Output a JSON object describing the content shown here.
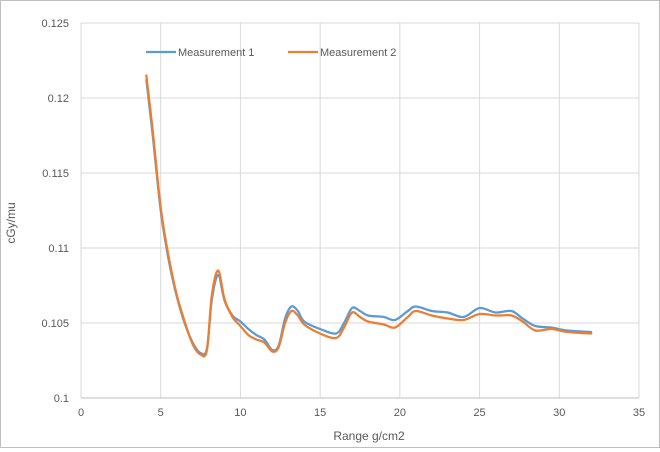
{
  "chart_data": {
    "type": "line",
    "title": "",
    "xlabel": "Range g/cm2",
    "ylabel": "cGy/mu",
    "xlim": [
      0,
      35
    ],
    "ylim": [
      0.1,
      0.125
    ],
    "x_ticks": [
      "0",
      "5",
      "10",
      "15",
      "20",
      "25",
      "30",
      "35"
    ],
    "y_ticks": [
      "0.1",
      "0.105",
      "0.11",
      "0.115",
      "0.12",
      "0.125"
    ],
    "grid": true,
    "legend_position": "top",
    "series": [
      {
        "name": "Measurement 1",
        "color": "#5b9bd5",
        "points": [
          [
            4.1,
            0.1212
          ],
          [
            4.5,
            0.1175
          ],
          [
            5,
            0.1125
          ],
          [
            5.5,
            0.1092
          ],
          [
            6,
            0.1068
          ],
          [
            6.5,
            0.105
          ],
          [
            7,
            0.1037
          ],
          [
            7.5,
            0.103
          ],
          [
            7.9,
            0.1033
          ],
          [
            8.2,
            0.1065
          ],
          [
            8.6,
            0.1082
          ],
          [
            9,
            0.1065
          ],
          [
            9.5,
            0.1055
          ],
          [
            10,
            0.1051
          ],
          [
            10.5,
            0.1046
          ],
          [
            11,
            0.1042
          ],
          [
            11.5,
            0.1039
          ],
          [
            12,
            0.1032
          ],
          [
            12.4,
            0.1035
          ],
          [
            12.8,
            0.1053
          ],
          [
            13.2,
            0.1061
          ],
          [
            13.6,
            0.1058
          ],
          [
            14,
            0.1051
          ],
          [
            15,
            0.1046
          ],
          [
            16,
            0.1043
          ],
          [
            16.5,
            0.105
          ],
          [
            17,
            0.106
          ],
          [
            17.5,
            0.1058
          ],
          [
            18,
            0.1055
          ],
          [
            19,
            0.1054
          ],
          [
            19.7,
            0.1052
          ],
          [
            20.5,
            0.1058
          ],
          [
            21,
            0.1061
          ],
          [
            22,
            0.1058
          ],
          [
            23,
            0.1057
          ],
          [
            24,
            0.1054
          ],
          [
            25,
            0.106
          ],
          [
            26,
            0.1057
          ],
          [
            27,
            0.1058
          ],
          [
            27.7,
            0.1053
          ],
          [
            28.5,
            0.1048
          ],
          [
            29.5,
            0.1047
          ],
          [
            30.5,
            0.1045
          ],
          [
            32,
            0.1044
          ]
        ]
      },
      {
        "name": "Measurement 2",
        "color": "#ed7d31",
        "points": [
          [
            4.1,
            0.1215
          ],
          [
            4.5,
            0.1178
          ],
          [
            5,
            0.1127
          ],
          [
            5.5,
            0.1094
          ],
          [
            6,
            0.1069
          ],
          [
            6.5,
            0.1051
          ],
          [
            7,
            0.1036
          ],
          [
            7.5,
            0.1029
          ],
          [
            7.9,
            0.1032
          ],
          [
            8.2,
            0.1068
          ],
          [
            8.6,
            0.1085
          ],
          [
            9,
            0.1066
          ],
          [
            9.5,
            0.1054
          ],
          [
            10,
            0.1048
          ],
          [
            10.5,
            0.1042
          ],
          [
            11,
            0.1039
          ],
          [
            11.5,
            0.1037
          ],
          [
            12,
            0.1031
          ],
          [
            12.4,
            0.1034
          ],
          [
            12.8,
            0.105
          ],
          [
            13.2,
            0.1058
          ],
          [
            13.6,
            0.1055
          ],
          [
            14,
            0.1049
          ],
          [
            15,
            0.1043
          ],
          [
            16,
            0.104
          ],
          [
            16.5,
            0.1047
          ],
          [
            17,
            0.1057
          ],
          [
            17.5,
            0.1054
          ],
          [
            18,
            0.1051
          ],
          [
            19,
            0.1049
          ],
          [
            19.7,
            0.1047
          ],
          [
            20.5,
            0.1054
          ],
          [
            21,
            0.1058
          ],
          [
            22,
            0.1055
          ],
          [
            23,
            0.1053
          ],
          [
            24,
            0.1052
          ],
          [
            25,
            0.1056
          ],
          [
            26,
            0.1055
          ],
          [
            27,
            0.1055
          ],
          [
            27.7,
            0.1051
          ],
          [
            28.5,
            0.1045
          ],
          [
            29.5,
            0.1046
          ],
          [
            30.5,
            0.1044
          ],
          [
            32,
            0.1043
          ]
        ]
      }
    ]
  }
}
